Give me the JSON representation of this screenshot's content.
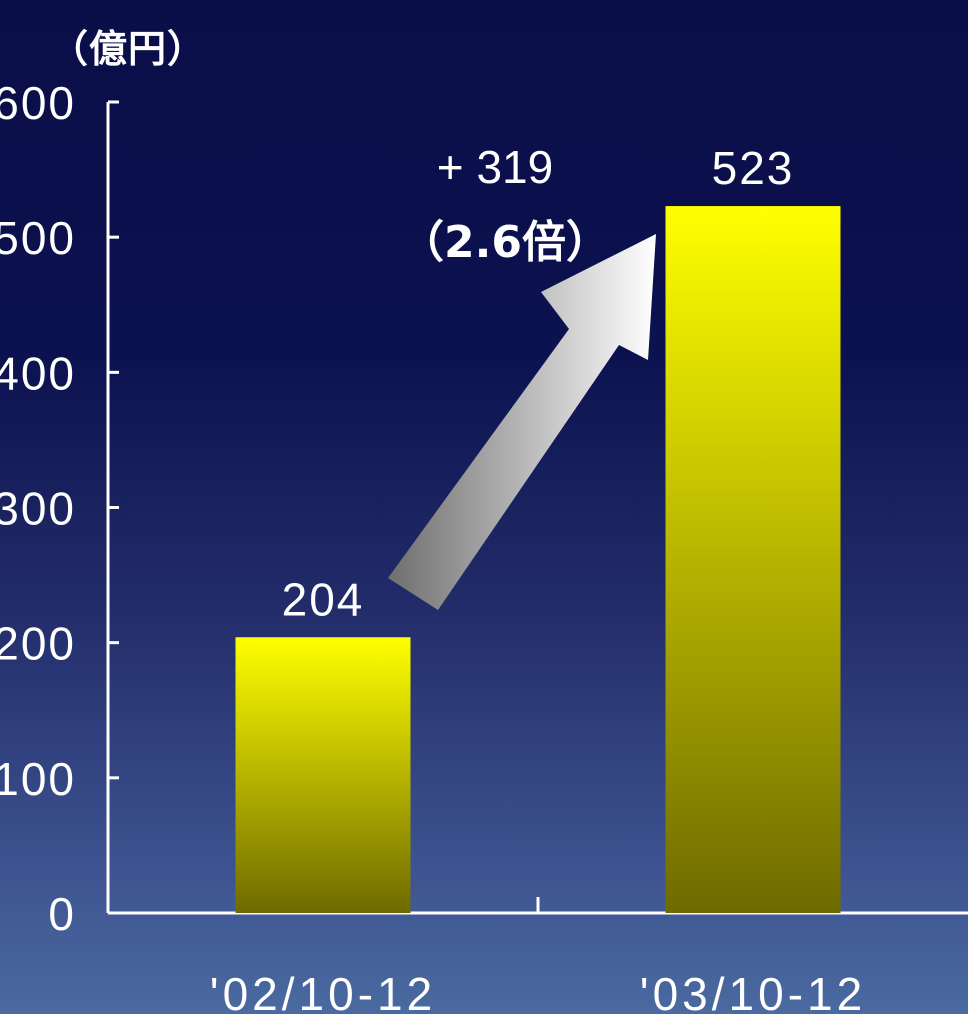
{
  "chart_data": {
    "type": "bar",
    "categories": [
      "'02/10-12",
      "'03/10-12"
    ],
    "values": [
      204,
      523
    ],
    "data_labels": [
      "204",
      "523"
    ],
    "unit_label": "（億円）",
    "ylim": [
      0,
      600
    ],
    "yticks": [
      0,
      100,
      200,
      300,
      400,
      500,
      600
    ],
    "grid": false,
    "annotation": {
      "line1": "+ 319",
      "line2": "（2.6倍）"
    },
    "colors": {
      "bar_top": "#ffff00",
      "bar_bottom": "#6e6a00",
      "axis": "#ffffff",
      "text": "#ffffff",
      "arrow_light": "#ffffff",
      "arrow_dark": "#6e6e6e"
    }
  }
}
